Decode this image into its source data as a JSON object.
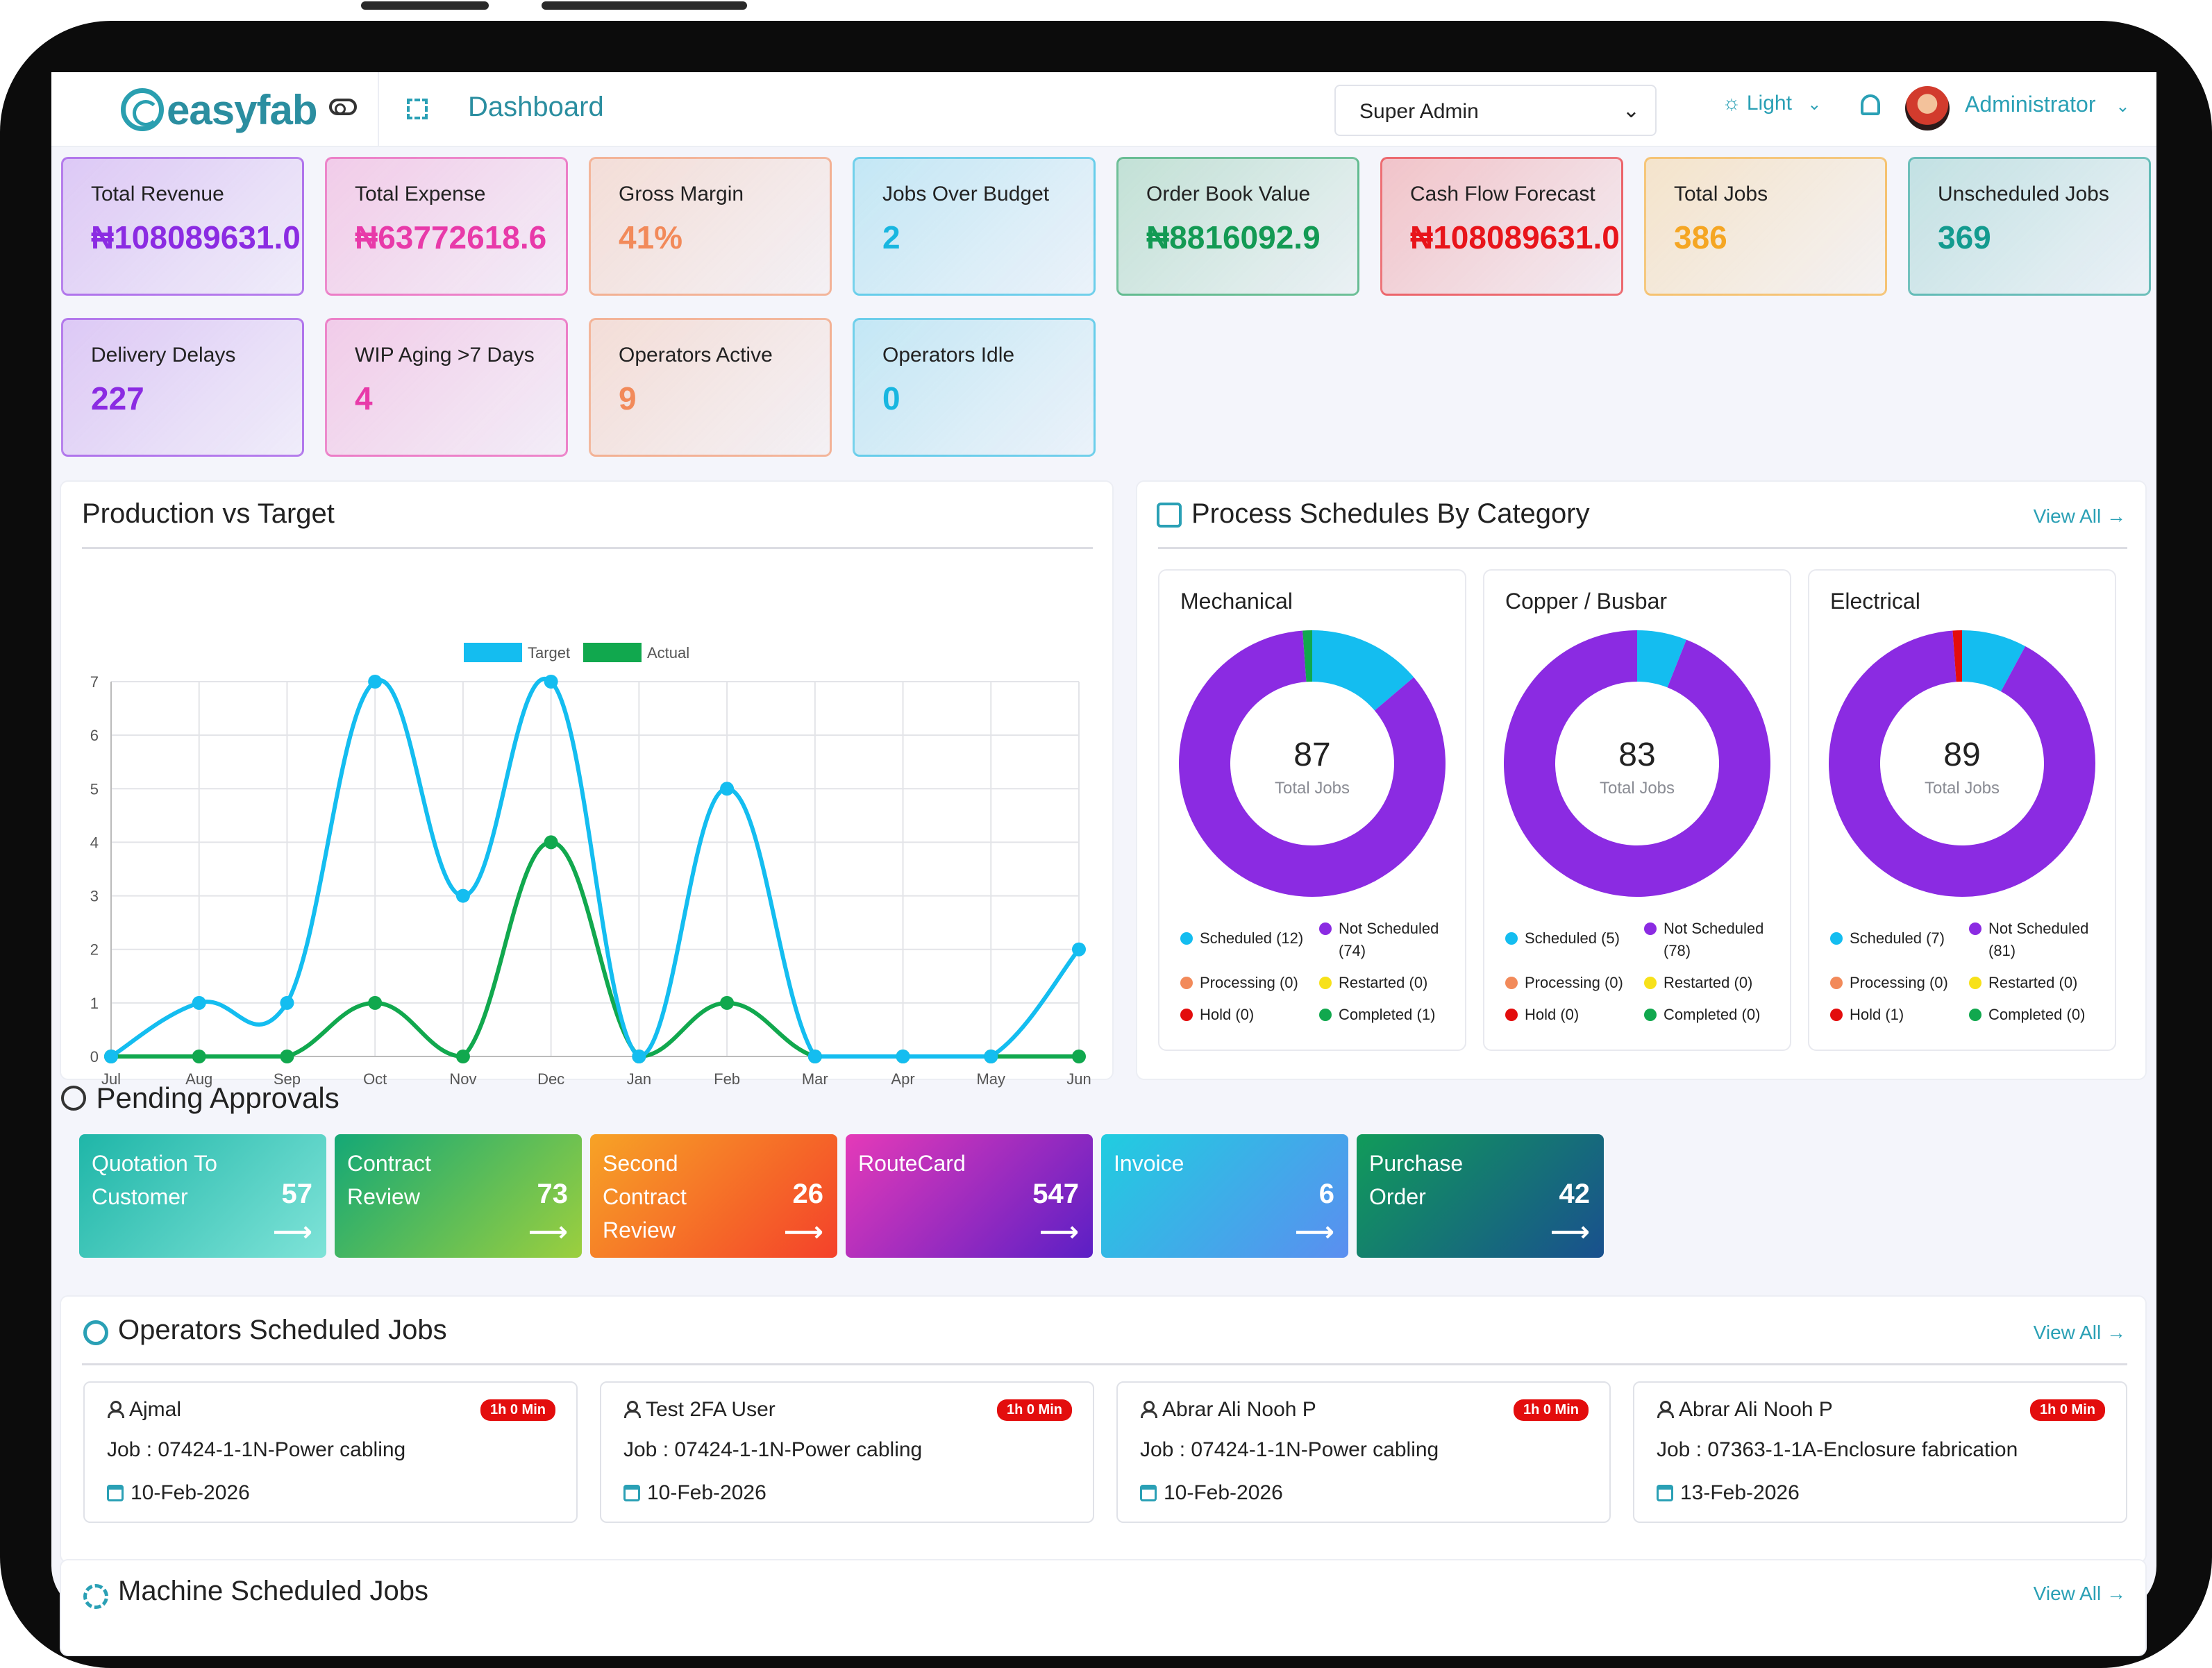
{
  "header": {
    "brand": "easyfab",
    "page_title": "Dashboard",
    "role": "Super Admin",
    "theme": "Light",
    "user": "Administrator"
  },
  "kpis": [
    {
      "label": "Total Revenue",
      "value": "₦108089631.0",
      "color": "#8b2be2"
    },
    {
      "label": "Total Expense",
      "value": "₦63772618.6",
      "color": "#e83aa9"
    },
    {
      "label": "Gross Margin",
      "value": "41%",
      "color": "#f28a5a"
    },
    {
      "label": "Jobs Over Budget",
      "value": "2",
      "color": "#18b6e0"
    },
    {
      "label": "Order Book Value",
      "value": "₦8816092.9",
      "color": "#139a54"
    },
    {
      "label": "Cash Flow Forecast",
      "value": "₦108089631.0",
      "color": "#e8141a"
    },
    {
      "label": "Total Jobs",
      "value": "386",
      "color": "#f5a623"
    },
    {
      "label": "Unscheduled Jobs",
      "value": "369",
      "color": "#139b8f"
    },
    {
      "label": "Delivery Delays",
      "value": "227",
      "color": "#8b2be2"
    },
    {
      "label": "WIP Aging >7 Days",
      "value": "4",
      "color": "#e83aa9"
    },
    {
      "label": "Operators Active",
      "value": "9",
      "color": "#f28a5a"
    },
    {
      "label": "Operators Idle",
      "value": "0",
      "color": "#18b6e0"
    }
  ],
  "production": {
    "title": "Production vs Target",
    "legend_target": "Target",
    "legend_actual": "Actual"
  },
  "chart_data": {
    "type": "line",
    "categories": [
      "Jul",
      "Aug",
      "Sep",
      "Oct",
      "Nov",
      "Dec",
      "Jan",
      "Feb",
      "Mar",
      "Apr",
      "May",
      "Jun"
    ],
    "series": [
      {
        "name": "Target",
        "color": "#14bdf0",
        "values": [
          0,
          1,
          1,
          7,
          3,
          7,
          0,
          5,
          0,
          0,
          0,
          2
        ]
      },
      {
        "name": "Actual",
        "color": "#11a84e",
        "values": [
          0,
          0,
          0,
          1,
          0,
          4,
          0,
          1,
          0,
          0,
          0,
          0
        ]
      }
    ],
    "y_ticks": [
      "0",
      "1",
      "2",
      "3",
      "4",
      "5",
      "6",
      "7"
    ],
    "ylim": [
      0,
      7
    ],
    "grid": true,
    "legend": "top-center"
  },
  "schedules": {
    "title": "Process Schedules By Category",
    "view_all": "View All",
    "total_label": "Total Jobs",
    "colors": {
      "scheduled": "#14bdf0",
      "not_scheduled": "#8b2be2",
      "processing": "#f28a5a",
      "restarted": "#f7e11a",
      "hold": "#e30d0d",
      "completed": "#11a84e"
    },
    "categories": [
      {
        "name": "Mechanical",
        "total": "87",
        "counts": {
          "scheduled": 12,
          "not_scheduled": 74,
          "processing": 0,
          "restarted": 0,
          "hold": 0,
          "completed": 1
        },
        "legend": {
          "scheduled": "Scheduled (12)",
          "not_scheduled_1": "Not Scheduled",
          "not_scheduled_2": "(74)",
          "processing": "Processing (0)",
          "restarted": "Restarted (0)",
          "hold": "Hold (0)",
          "completed": "Completed (1)"
        }
      },
      {
        "name": "Copper / Busbar",
        "total": "83",
        "counts": {
          "scheduled": 5,
          "not_scheduled": 78,
          "processing": 0,
          "restarted": 0,
          "hold": 0,
          "completed": 0
        },
        "legend": {
          "scheduled": "Scheduled (5)",
          "not_scheduled_1": "Not Scheduled",
          "not_scheduled_2": "(78)",
          "processing": "Processing (0)",
          "restarted": "Restarted (0)",
          "hold": "Hold (0)",
          "completed": "Completed (0)"
        }
      },
      {
        "name": "Electrical",
        "total": "89",
        "counts": {
          "scheduled": 7,
          "not_scheduled": 81,
          "processing": 0,
          "restarted": 0,
          "hold": 1,
          "completed": 0
        },
        "legend": {
          "scheduled": "Scheduled (7)",
          "not_scheduled_1": "Not Scheduled",
          "not_scheduled_2": "(81)",
          "processing": "Processing (0)",
          "restarted": "Restarted (0)",
          "hold": "Hold (1)",
          "completed": "Completed (0)"
        }
      }
    ]
  },
  "approvals": {
    "title": "Pending Approvals",
    "arrow": "⟶",
    "items": [
      {
        "line1": "Quotation To",
        "line2": "Customer",
        "line3": "",
        "count": "57"
      },
      {
        "line1": "Contract",
        "line2": "Review",
        "line3": "",
        "count": "73"
      },
      {
        "line1": "Second",
        "line2": "Contract",
        "line3": "Review",
        "count": "26"
      },
      {
        "line1": "RouteCard",
        "line2": "",
        "line3": "",
        "count": "547"
      },
      {
        "line1": "Invoice",
        "line2": "",
        "line3": "",
        "count": "6"
      },
      {
        "line1": "Purchase",
        "line2": "Order",
        "line3": "",
        "count": "42"
      }
    ]
  },
  "operators": {
    "title": "Operators Scheduled Jobs",
    "view_all": "View All",
    "items": [
      {
        "name": "Ajmal",
        "badge": "1h 0 Min",
        "job": "Job : 07424-1-1N-Power cabling",
        "date": "10-Feb-2026"
      },
      {
        "name": "Test 2FA User",
        "badge": "1h 0 Min",
        "job": "Job : 07424-1-1N-Power cabling",
        "date": "10-Feb-2026"
      },
      {
        "name": "Abrar Ali Nooh P",
        "badge": "1h 0 Min",
        "job": "Job : 07424-1-1N-Power cabling",
        "date": "10-Feb-2026"
      },
      {
        "name": "Abrar Ali Nooh P",
        "badge": "1h 0 Min",
        "job": "Job : 07363-1-1A-Enclosure fabrication",
        "date": "13-Feb-2026"
      }
    ]
  },
  "machines": {
    "title": "Machine Scheduled Jobs",
    "view_all": "View All"
  }
}
